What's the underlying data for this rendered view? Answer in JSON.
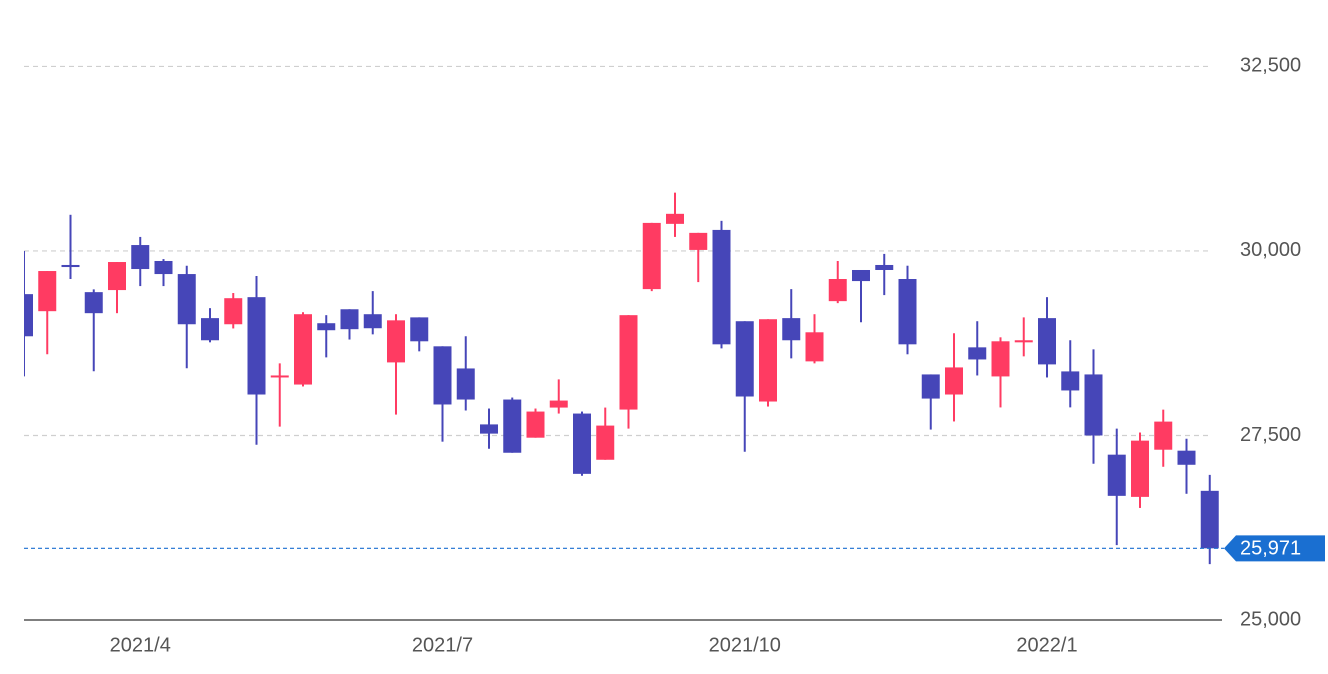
{
  "chart_data": {
    "type": "candlestick",
    "categories": [
      null,
      null,
      null,
      null,
      null,
      "2021/4",
      null,
      null,
      null,
      null,
      null,
      null,
      null,
      null,
      null,
      null,
      null,
      null,
      "2021/7",
      null,
      null,
      null,
      null,
      null,
      null,
      null,
      null,
      null,
      null,
      null,
      null,
      "2021/10",
      null,
      null,
      null,
      null,
      null,
      null,
      null,
      null,
      null,
      null,
      null,
      null,
      "2022/1",
      null,
      null,
      null,
      null,
      null,
      null,
      null
    ],
    "open": [
      29415,
      29184,
      29810,
      29442,
      29470,
      30080,
      29864,
      29687,
      29090,
      29007,
      29374,
      28290,
      28190,
      29021,
      29210,
      29143,
      28490,
      29100,
      28708,
      28408,
      27650,
      27987,
      27470,
      27878,
      27797,
      27171,
      27851,
      29483,
      30367,
      30014,
      30285,
      29048,
      27960,
      29090,
      28504,
      29320,
      29742,
      29810,
      29620,
      28327,
      28055,
      28694,
      28300,
      28762,
      29090,
      28368,
      28327,
      27240,
      26668,
      27307,
      27294,
      26750
    ],
    "high": [
      30000,
      29728,
      30490,
      29480,
      29850,
      30190,
      29890,
      29800,
      29225,
      29430,
      29660,
      28477,
      29170,
      29130,
      29210,
      29456,
      29143,
      29100,
      28708,
      28844,
      27865,
      28014,
      27865,
      28260,
      27824,
      27878,
      29130,
      30380,
      30790,
      30245,
      30408,
      29048,
      29075,
      29483,
      29143,
      29864,
      29742,
      29960,
      29800,
      28327,
      28885,
      29048,
      28830,
      29100,
      29374,
      28790,
      28667,
      27593,
      27540,
      27850,
      27456,
      26967
    ],
    "low": [
      28300,
      28600,
      29620,
      28370,
      29157,
      29524,
      29524,
      28410,
      28762,
      28950,
      27375,
      27620,
      28164,
      28558,
      28800,
      28870,
      27783,
      28640,
      27416,
      27838,
      27320,
      27266,
      27470,
      27797,
      26954,
      27171,
      27593,
      29456,
      30190,
      29578,
      28680,
      27280,
      27892,
      28545,
      28477,
      29293,
      29034,
      29402,
      28600,
      27580,
      27690,
      28313,
      27880,
      28572,
      28286,
      27880,
      27117,
      26015,
      26518,
      27076,
      26710,
      25757
    ],
    "close": [
      28844,
      29728,
      29782,
      29157,
      29850,
      29755,
      29687,
      29007,
      28790,
      29360,
      28055,
      28313,
      29143,
      28926,
      28940,
      28953,
      29060,
      28776,
      27920,
      27987,
      27525,
      27266,
      27824,
      27973,
      26980,
      27634,
      29130,
      30380,
      30503,
      30245,
      28735,
      28028,
      29075,
      28790,
      28898,
      29620,
      29592,
      29742,
      28735,
      28000,
      28422,
      28530,
      28776,
      28790,
      28463,
      28110,
      27500,
      26682,
      27430,
      27688,
      27103,
      25971
    ],
    "up_color": "#ff3b62",
    "down_color": "#4646b8",
    "ylim": [
      25000,
      33400
    ],
    "yticks": [
      {
        "value": 25000,
        "label": "25,000"
      },
      {
        "value": 27500,
        "label": "27,500"
      },
      {
        "value": 30000,
        "label": "30,000"
      },
      {
        "value": 32500,
        "label": "32,500"
      }
    ],
    "grid": true,
    "last_price": {
      "value": 25971,
      "label": "25,971",
      "color": "#1a6fd1"
    }
  }
}
